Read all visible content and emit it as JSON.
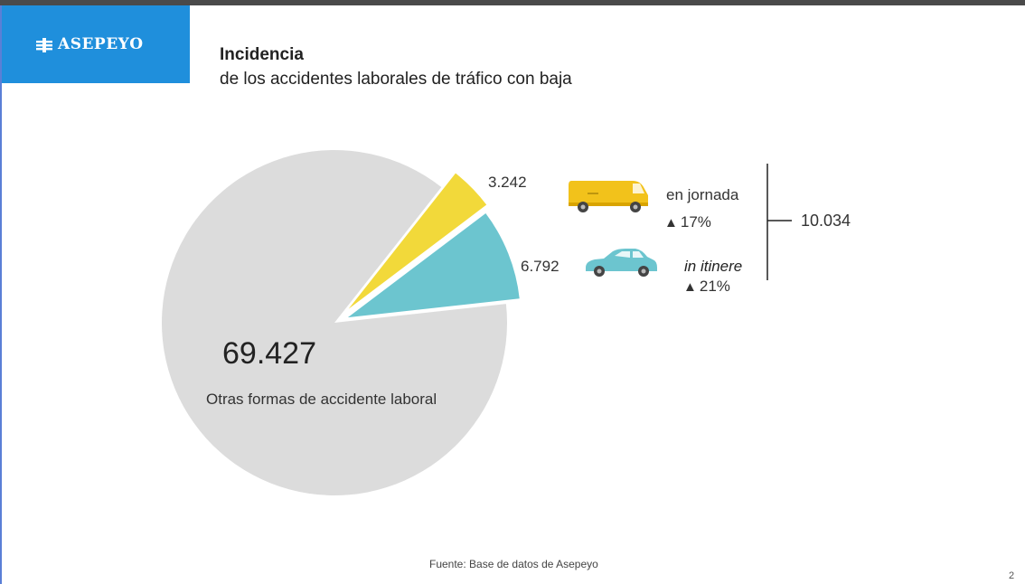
{
  "brand": {
    "name": "ASEPEYO",
    "color": "#1f8fdc"
  },
  "header": {
    "title": "Incidencia",
    "subtitle": "de los accidentes laborales de tráfico con baja"
  },
  "chart_data": {
    "type": "pie",
    "title": "Incidencia",
    "subtitle": "de los accidentes laborales de tráfico con baja",
    "slices": [
      {
        "label": "Otras formas de accidente laboral",
        "value_label": "69.427",
        "value": 69427,
        "color": "#dcdcdc"
      },
      {
        "label": "en jornada",
        "value_label": "3.242",
        "value": 3242,
        "color": "#f2d93a",
        "change": "17%",
        "change_direction": "up",
        "icon": "van-icon"
      },
      {
        "label": "in itinere",
        "value_label": "6.792",
        "value": 6792,
        "color": "#6cc5cf",
        "change": "21%",
        "change_direction": "up",
        "icon": "car-icon"
      }
    ],
    "total_traffic_label": "10.034",
    "total_traffic": 10034
  },
  "footer": {
    "source": "Fuente: Base de datos de Asepeyo",
    "page": "2"
  }
}
